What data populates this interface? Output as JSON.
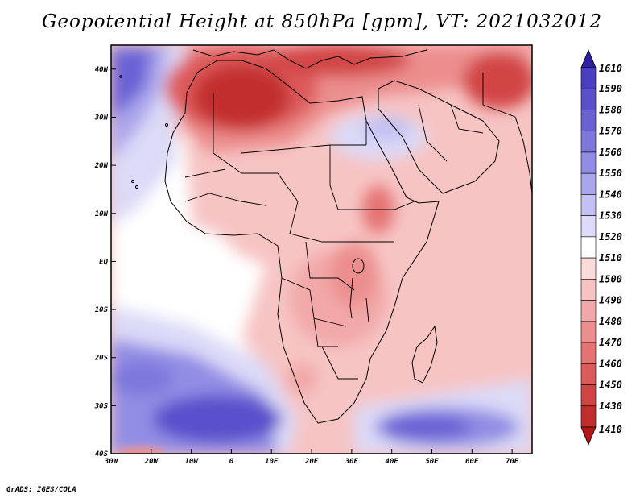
{
  "title": "Geopotential Height at 850hPa [gpm], VT: 2021032012",
  "footer": "GrADS: IGES/COLA",
  "map": {
    "variable": "Geopotential Height",
    "level": "850hPa",
    "units": "gpm",
    "valid_time": "2021032012",
    "lon_range": [
      -30,
      75
    ],
    "lat_range": [
      -40,
      45
    ],
    "lat_ticks": [
      {
        "value": 40,
        "label": "40N"
      },
      {
        "value": 30,
        "label": "30N"
      },
      {
        "value": 20,
        "label": "20N"
      },
      {
        "value": 10,
        "label": "10N"
      },
      {
        "value": 0,
        "label": "EQ"
      },
      {
        "value": -10,
        "label": "10S"
      },
      {
        "value": -20,
        "label": "20S"
      },
      {
        "value": -30,
        "label": "30S"
      },
      {
        "value": -40,
        "label": "40S"
      }
    ],
    "lon_ticks": [
      {
        "value": -30,
        "label": "30W"
      },
      {
        "value": -20,
        "label": "20W"
      },
      {
        "value": -10,
        "label": "10W"
      },
      {
        "value": 0,
        "label": "0"
      },
      {
        "value": 10,
        "label": "10E"
      },
      {
        "value": 20,
        "label": "20E"
      },
      {
        "value": 30,
        "label": "30E"
      },
      {
        "value": 40,
        "label": "40E"
      },
      {
        "value": 50,
        "label": "50E"
      },
      {
        "value": 60,
        "label": "60E"
      },
      {
        "value": 70,
        "label": "70E"
      }
    ]
  },
  "colorbar": {
    "top_label": "1610",
    "bottom_label": "1410",
    "top_color": "#2d1fa0",
    "bottom_color": "#b31616",
    "levels": [
      {
        "label": "1590",
        "color": "#4a3fc2"
      },
      {
        "label": "1580",
        "color": "#5a50cc"
      },
      {
        "label": "1570",
        "color": "#6a62d4"
      },
      {
        "label": "1560",
        "color": "#7d77dc"
      },
      {
        "label": "1550",
        "color": "#928de4"
      },
      {
        "label": "1540",
        "color": "#aaa6ec"
      },
      {
        "label": "1530",
        "color": "#c3c0f2"
      },
      {
        "label": "1520",
        "color": "#dcdaf8"
      },
      {
        "label": "1510",
        "color": "#ffffff"
      },
      {
        "label": "1500",
        "color": "#fbdada"
      },
      {
        "label": "1490",
        "color": "#f7c2c2"
      },
      {
        "label": "1480",
        "color": "#f2a8a8"
      },
      {
        "label": "1470",
        "color": "#ec8e8e"
      },
      {
        "label": "1460",
        "color": "#e57373"
      },
      {
        "label": "1450",
        "color": "#dd5a5a"
      },
      {
        "label": "1430",
        "color": "#d24444"
      },
      {
        "label": "1410",
        "color": "#c22e2e"
      }
    ]
  }
}
